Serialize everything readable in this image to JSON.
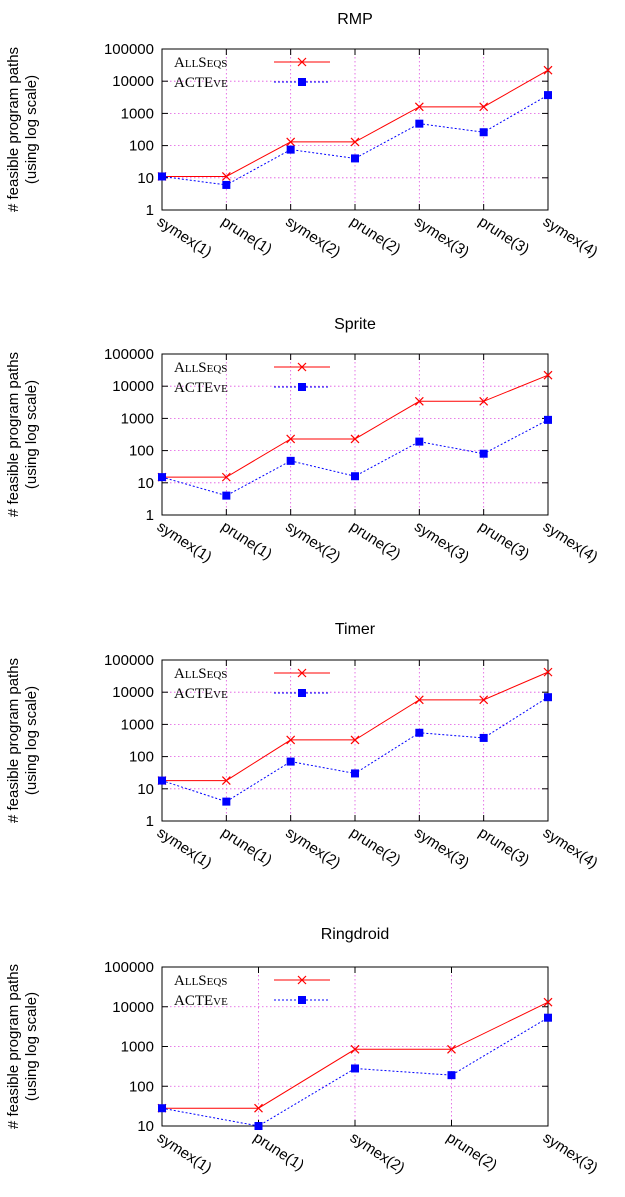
{
  "chart_data": [
    {
      "type": "line",
      "title": "RMP",
      "ylabel": [
        "# feasible program paths",
        "(using log scale)"
      ],
      "yscale": "log",
      "ylim": [
        1,
        100000
      ],
      "yticks": [
        "1",
        "10",
        "100",
        "1000",
        "10000",
        "100000"
      ],
      "categories": [
        "symex(1)",
        "prune(1)",
        "symex(2)",
        "prune(2)",
        "symex(3)",
        "prune(3)",
        "symex(4)"
      ],
      "legend_position": "top-left",
      "grid": true,
      "series": [
        {
          "name": "ALLSEQS",
          "color": "#ff0000",
          "marker": "x",
          "dash": "solid",
          "values": [
            11,
            11,
            130,
            130,
            1600,
            1600,
            22000
          ]
        },
        {
          "name": "ACTEVE",
          "color": "#0000ff",
          "marker": "square",
          "dash": "dotted",
          "values": [
            11,
            6,
            75,
            40,
            480,
            260,
            3700
          ]
        }
      ]
    },
    {
      "type": "line",
      "title": "Sprite",
      "ylabel": [
        "# feasible program paths",
        "(using log scale)"
      ],
      "yscale": "log",
      "ylim": [
        1,
        100000
      ],
      "yticks": [
        "1",
        "10",
        "100",
        "1000",
        "10000",
        "100000"
      ],
      "categories": [
        "symex(1)",
        "prune(1)",
        "symex(2)",
        "prune(2)",
        "symex(3)",
        "prune(3)",
        "symex(4)"
      ],
      "legend_position": "top-left",
      "grid": true,
      "series": [
        {
          "name": "ALLSEQS",
          "color": "#ff0000",
          "marker": "x",
          "dash": "solid",
          "values": [
            15,
            15,
            230,
            230,
            3400,
            3400,
            22000
          ]
        },
        {
          "name": "ACTEVE",
          "color": "#0000ff",
          "marker": "square",
          "dash": "dotted",
          "values": [
            15,
            4,
            48,
            16,
            190,
            80,
            900
          ]
        }
      ]
    },
    {
      "type": "line",
      "title": "Timer",
      "ylabel": [
        "# feasible program paths",
        "(using log scale)"
      ],
      "yscale": "log",
      "ylim": [
        1,
        100000
      ],
      "yticks": [
        "1",
        "10",
        "100",
        "1000",
        "10000",
        "100000"
      ],
      "categories": [
        "symex(1)",
        "prune(1)",
        "symex(2)",
        "prune(2)",
        "symex(3)",
        "prune(3)",
        "symex(4)"
      ],
      "legend_position": "top-left",
      "grid": true,
      "series": [
        {
          "name": "ALLSEQS",
          "color": "#ff0000",
          "marker": "x",
          "dash": "solid",
          "values": [
            18,
            18,
            330,
            330,
            5800,
            5800,
            42000
          ]
        },
        {
          "name": "ACTEVE",
          "color": "#0000ff",
          "marker": "square",
          "dash": "dotted",
          "values": [
            18,
            4,
            70,
            30,
            550,
            380,
            7000
          ]
        }
      ]
    },
    {
      "type": "line",
      "title": "Ringdroid",
      "ylabel": [
        "# feasible program paths",
        "(using log scale)"
      ],
      "yscale": "log",
      "ylim": [
        10,
        100000
      ],
      "yticks": [
        "10",
        "100",
        "1000",
        "10000",
        "100000"
      ],
      "categories": [
        "symex(1)",
        "prune(1)",
        "symex(2)",
        "prune(2)",
        "symex(3)"
      ],
      "legend_position": "top-left",
      "grid": true,
      "series": [
        {
          "name": "ALLSEQS",
          "color": "#ff0000",
          "marker": "x",
          "dash": "solid",
          "values": [
            28,
            28,
            850,
            850,
            13000
          ]
        },
        {
          "name": "ACTEVE",
          "color": "#0000ff",
          "marker": "square",
          "dash": "dotted",
          "values": [
            28,
            10,
            280,
            190,
            5300
          ]
        }
      ]
    }
  ]
}
